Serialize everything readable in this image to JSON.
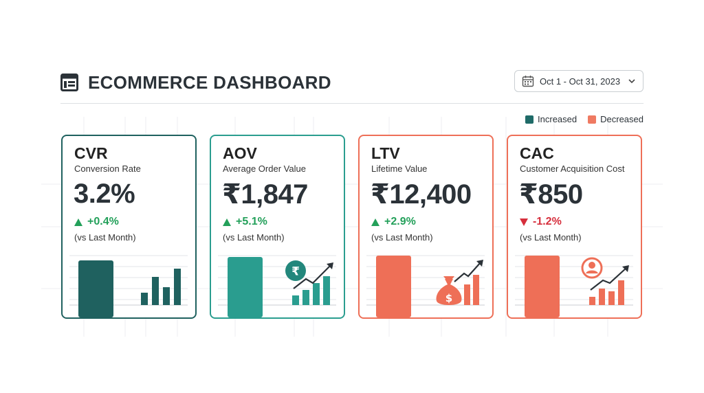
{
  "header": {
    "title": "ECOMMERCE DASHBOARD",
    "logo_icon": "dashboard-icon"
  },
  "date_picker": {
    "value": "Oct 1 - Oct 31, 2023",
    "icon": "calendar-icon",
    "chevron": "chevron-down-icon"
  },
  "legend": {
    "items": [
      {
        "label": "Increased",
        "color": "#1f6b68"
      },
      {
        "label": "Decreased",
        "color": "#ef7a62"
      }
    ]
  },
  "colors": {
    "teal_dark": "#1f615f",
    "teal": "#2a9d8f",
    "coral": "#ee6f57",
    "up": "#23a05a",
    "down": "#d62e3c"
  },
  "cards": [
    {
      "abbr": "CVR",
      "full": "Conversion Rate",
      "value": "3.2%",
      "delta": "+0.4%",
      "direction": "up",
      "comparison": "(vs Last Month)",
      "icon": "bar-chart-icon"
    },
    {
      "abbr": "AOV",
      "full": "Average Order Value",
      "value": "₹1,847",
      "delta": "+5.1%",
      "direction": "up",
      "comparison": "(vs Last Month)",
      "icon": "rupee-growth-icon",
      "icon_glyph": "₹"
    },
    {
      "abbr": "LTV",
      "full": "Lifetime Value",
      "value": "₹12,400",
      "delta": "+2.9%",
      "direction": "up",
      "comparison": "(vs Last Month)",
      "icon": "money-bag-growth-icon",
      "icon_glyph": "$"
    },
    {
      "abbr": "CAC",
      "full": "Customer Acquisition Cost",
      "value": "₹850",
      "delta": "-1.2%",
      "direction": "down",
      "comparison": "(vs Last Month)",
      "icon": "user-growth-icon"
    }
  ]
}
